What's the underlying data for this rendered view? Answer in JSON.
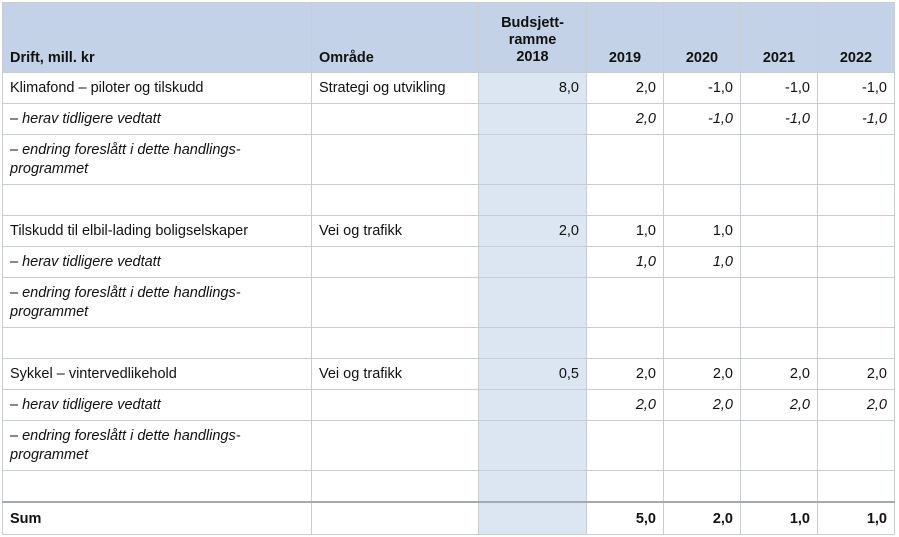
{
  "header": {
    "col_drift": "Drift, mill. kr",
    "col_omrade": "Område",
    "col_budsjett": [
      "Budsjett-",
      "ramme",
      "2018"
    ],
    "col_2019": "2019",
    "col_2020": "2020",
    "col_2021": "2021",
    "col_2022": "2022"
  },
  "rows": [
    {
      "label": "Klimafond – piloter og tilskudd",
      "area": "Strategi og utvikling",
      "budget": "8,0",
      "y2019": "2,0",
      "y2020": "-1,0",
      "y2021": "-1,0",
      "y2022": "-1,0"
    },
    {
      "label": "– herav tidligere vedtatt",
      "area": "",
      "budget": "",
      "y2019": "2,0",
      "y2020": "-1,0",
      "y2021": "-1,0",
      "y2022": "-1,0"
    },
    {
      "label": "– endring foreslått i dette handlings-programmet",
      "area": "",
      "budget": "",
      "y2019": "",
      "y2020": "",
      "y2021": "",
      "y2022": ""
    },
    {
      "label": "",
      "area": "",
      "budget": "",
      "y2019": "",
      "y2020": "",
      "y2021": "",
      "y2022": ""
    },
    {
      "label": "Tilskudd til elbil-lading boligselskaper",
      "area": "Vei og trafikk",
      "budget": "2,0",
      "y2019": "1,0",
      "y2020": "1,0",
      "y2021": "",
      "y2022": ""
    },
    {
      "label": "– herav tidligere vedtatt",
      "area": "",
      "budget": "",
      "y2019": "1,0",
      "y2020": "1,0",
      "y2021": "",
      "y2022": ""
    },
    {
      "label": "– endring foreslått i dette handlings-programmet",
      "area": "",
      "budget": "",
      "y2019": "",
      "y2020": "",
      "y2021": "",
      "y2022": ""
    },
    {
      "label": "",
      "area": "",
      "budget": "",
      "y2019": "",
      "y2020": "",
      "y2021": "",
      "y2022": ""
    },
    {
      "label": "Sykkel – vintervedlikehold",
      "area": "Vei og trafikk",
      "budget": "0,5",
      "y2019": "2,0",
      "y2020": "2,0",
      "y2021": "2,0",
      "y2022": "2,0"
    },
    {
      "label": "– herav tidligere vedtatt",
      "area": "",
      "budget": "",
      "y2019": "2,0",
      "y2020": "2,0",
      "y2021": "2,0",
      "y2022": "2,0"
    },
    {
      "label": "– endring foreslått i dette handlings-programmet",
      "area": "",
      "budget": "",
      "y2019": "",
      "y2020": "",
      "y2021": "",
      "y2022": ""
    },
    {
      "label": "",
      "area": "",
      "budget": "",
      "y2019": "",
      "y2020": "",
      "y2021": "",
      "y2022": ""
    }
  ],
  "sum": {
    "label": "Sum",
    "area": "",
    "budget": "",
    "y2019": "5,0",
    "y2020": "2,0",
    "y2021": "1,0",
    "y2022": "1,0"
  }
}
